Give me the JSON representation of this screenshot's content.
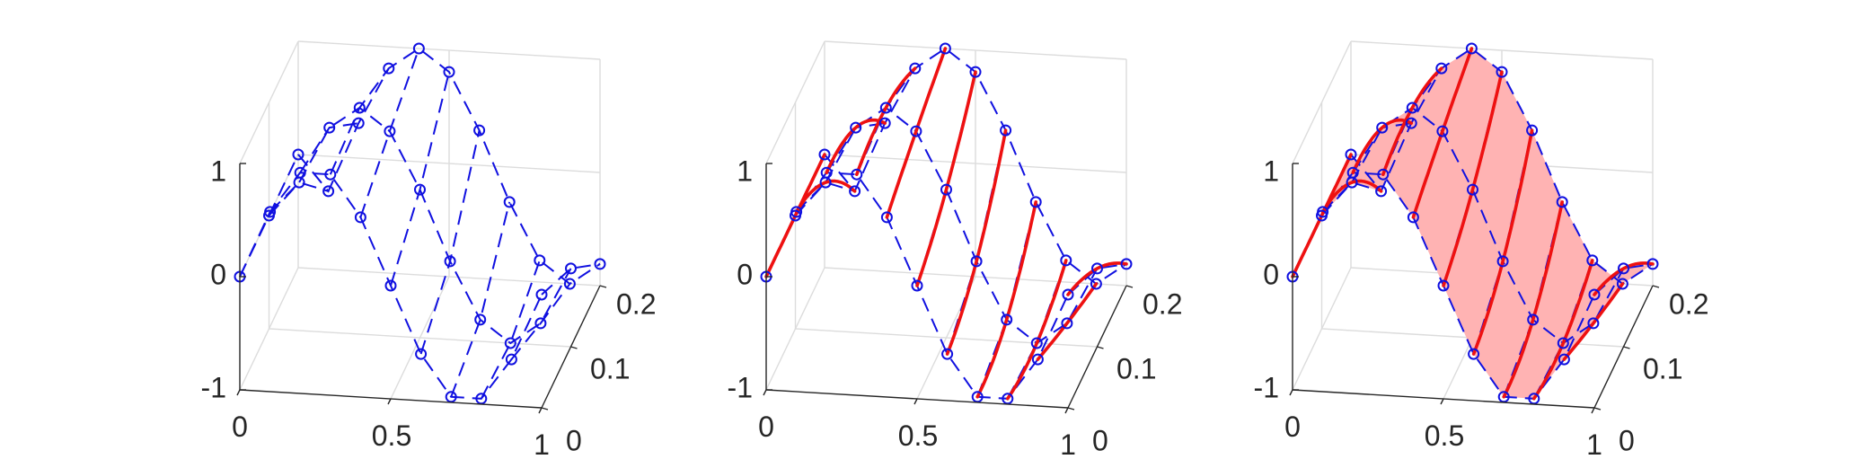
{
  "figure": {
    "colors": {
      "dashed_lines": "#1010e0",
      "markers": "#1010e0",
      "solid_lines": "#ee1111",
      "surface_fill": "#ffb3b3",
      "axes": "#262626",
      "box": "#dcdcdc"
    }
  },
  "chart_data": [
    {
      "type": "line3d",
      "panel": 1,
      "xlim": [
        0,
        1
      ],
      "ylim": [
        0,
        0.2
      ],
      "zlim": [
        -1,
        1
      ],
      "x_ticks": [
        "0",
        "0.5",
        "1"
      ],
      "y_ticks": [
        "0",
        "0.1",
        "0.2"
      ],
      "z_ticks": [
        "-1",
        "0",
        "1"
      ],
      "x": [
        0,
        0.1,
        0.2,
        0.3,
        0.4,
        0.5,
        0.6,
        0.7,
        0.8,
        0.9,
        1.0
      ],
      "t": [
        0,
        0.1,
        0.2
      ],
      "series": [
        {
          "t": 0,
          "z": [
            0,
            0.588,
            0.951,
            0.951,
            0.588,
            0,
            -0.588,
            -0.951,
            -0.951,
            -0.588,
            0
          ]
        },
        {
          "t": 0.1,
          "z": [
            0,
            0.309,
            0.809,
            1.0,
            0.809,
            0.309,
            -0.309,
            -0.809,
            -1.0,
            -0.809,
            -0.309
          ]
        },
        {
          "t": 0.2,
          "z": [
            0,
            -0.309,
            0.309,
            0.809,
            1.0,
            0.809,
            0.309,
            -0.309,
            -0.809,
            -1.0,
            -0.809
          ]
        }
      ],
      "solid_lines": false,
      "surface": false
    },
    {
      "type": "line3d",
      "panel": 2,
      "xlim": [
        0,
        1
      ],
      "ylim": [
        0,
        0.2
      ],
      "zlim": [
        -1,
        1
      ],
      "x_ticks": [
        "0",
        "0.5",
        "1"
      ],
      "y_ticks": [
        "0",
        "0.1",
        "0.2"
      ],
      "z_ticks": [
        "-1",
        "0",
        "1"
      ],
      "x": [
        0,
        0.1,
        0.2,
        0.3,
        0.4,
        0.5,
        0.6,
        0.7,
        0.8,
        0.9,
        1.0
      ],
      "t": [
        0,
        0.1,
        0.2
      ],
      "series": [
        {
          "t": 0,
          "z": [
            0,
            0.588,
            0.951,
            0.951,
            0.588,
            0,
            -0.588,
            -0.951,
            -0.951,
            -0.588,
            0
          ]
        },
        {
          "t": 0.1,
          "z": [
            0,
            0.309,
            0.809,
            1.0,
            0.809,
            0.309,
            -0.309,
            -0.809,
            -1.0,
            -0.809,
            -0.309
          ]
        },
        {
          "t": 0.2,
          "z": [
            0,
            -0.309,
            0.309,
            0.809,
            1.0,
            0.809,
            0.309,
            -0.309,
            -0.809,
            -1.0,
            -0.809
          ]
        }
      ],
      "solid_lines": true,
      "surface": false
    },
    {
      "type": "surface3d",
      "panel": 3,
      "xlim": [
        0,
        1
      ],
      "ylim": [
        0,
        0.2
      ],
      "zlim": [
        -1,
        1
      ],
      "x_ticks": [
        "0",
        "0.5",
        "1"
      ],
      "y_ticks": [
        "0",
        "0.1",
        "0.2"
      ],
      "z_ticks": [
        "-1",
        "0",
        "1"
      ],
      "x": [
        0,
        0.1,
        0.2,
        0.3,
        0.4,
        0.5,
        0.6,
        0.7,
        0.8,
        0.9,
        1.0
      ],
      "t": [
        0,
        0.1,
        0.2
      ],
      "series": [
        {
          "t": 0,
          "z": [
            0,
            0.588,
            0.951,
            0.951,
            0.588,
            0,
            -0.588,
            -0.951,
            -0.951,
            -0.588,
            0
          ]
        },
        {
          "t": 0.1,
          "z": [
            0,
            0.309,
            0.809,
            1.0,
            0.809,
            0.309,
            -0.309,
            -0.809,
            -1.0,
            -0.809,
            -0.309
          ]
        },
        {
          "t": 0.2,
          "z": [
            0,
            -0.309,
            0.309,
            0.809,
            1.0,
            0.809,
            0.309,
            -0.309,
            -0.809,
            -1.0,
            -0.809
          ]
        }
      ],
      "solid_lines": true,
      "surface": true
    }
  ]
}
